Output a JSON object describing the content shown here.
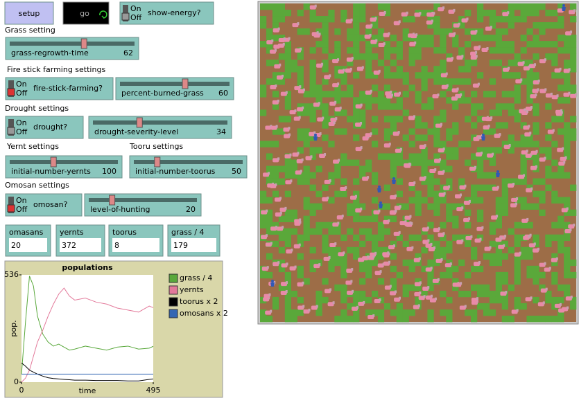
{
  "buttons": [
    {
      "label": "setup"
    },
    {
      "label": "go"
    }
  ],
  "sections": [
    "Grass setting",
    "Fire stick farming settings",
    "Drought settings",
    "Yernt settings",
    "Tooru settings",
    "Omosan settings"
  ],
  "switches": [
    {
      "label": "show-energy?",
      "on": "On",
      "off": "Off"
    },
    {
      "label": "fire-stick-farming?",
      "on": "On",
      "off": "Off"
    },
    {
      "label": "drought?",
      "on": "On",
      "off": "Off"
    },
    {
      "label": "omosan?",
      "on": "On",
      "off": "Off"
    }
  ],
  "sliders": [
    {
      "label": "grass-regrowth-time",
      "value": 62
    },
    {
      "label": "percent-burned-grass",
      "value": 60
    },
    {
      "label": "drought-severity-level",
      "value": 34
    },
    {
      "label": "initial-number-yernts",
      "value": 100
    },
    {
      "label": "initial-number-toorus",
      "value": 50
    },
    {
      "label": "level-of-hunting",
      "value": 20
    }
  ],
  "monitors": [
    {
      "label": "omasans",
      "value": 20
    },
    {
      "label": "yernts",
      "value": 372
    },
    {
      "label": "toorus",
      "value": 8
    },
    {
      "label": "grass / 4",
      "value": 179
    }
  ],
  "chart_data": {
    "type": "line",
    "title": "populations",
    "x_label": "time",
    "y_label": "pop.",
    "x": [
      0,
      15,
      30,
      45,
      60,
      80,
      100,
      120,
      140,
      160,
      180,
      200,
      240,
      280,
      320,
      360,
      400,
      440,
      480,
      495
    ],
    "series": [
      {
        "name": "grass / 4",
        "color": "#59a83b",
        "values": [
          40,
          300,
          530,
          480,
          330,
          240,
          200,
          180,
          190,
          175,
          160,
          165,
          180,
          170,
          160,
          175,
          180,
          165,
          170,
          179
        ]
      },
      {
        "name": "yernts",
        "color": "#e3799a",
        "values": [
          0,
          20,
          60,
          130,
          200,
          260,
          330,
          390,
          440,
          470,
          430,
          410,
          420,
          400,
          390,
          370,
          360,
          350,
          380,
          372
        ]
      },
      {
        "name": "toorus x 2",
        "color": "#000000",
        "values": [
          96,
          80,
          60,
          50,
          40,
          30,
          22,
          18,
          16,
          14,
          12,
          10,
          10,
          8,
          8,
          8,
          6,
          6,
          14,
          16
        ]
      },
      {
        "name": "omosans x 2",
        "color": "#3366b3",
        "values": [
          40,
          40,
          40,
          40,
          40,
          40,
          40,
          40,
          40,
          40,
          40,
          40,
          40,
          40,
          40,
          40,
          40,
          40,
          40,
          40
        ]
      }
    ],
    "xlim": [
      0,
      495
    ],
    "ylim": [
      0,
      536
    ],
    "xticks": [
      0,
      495
    ],
    "yticks": [
      0,
      536
    ]
  }
}
